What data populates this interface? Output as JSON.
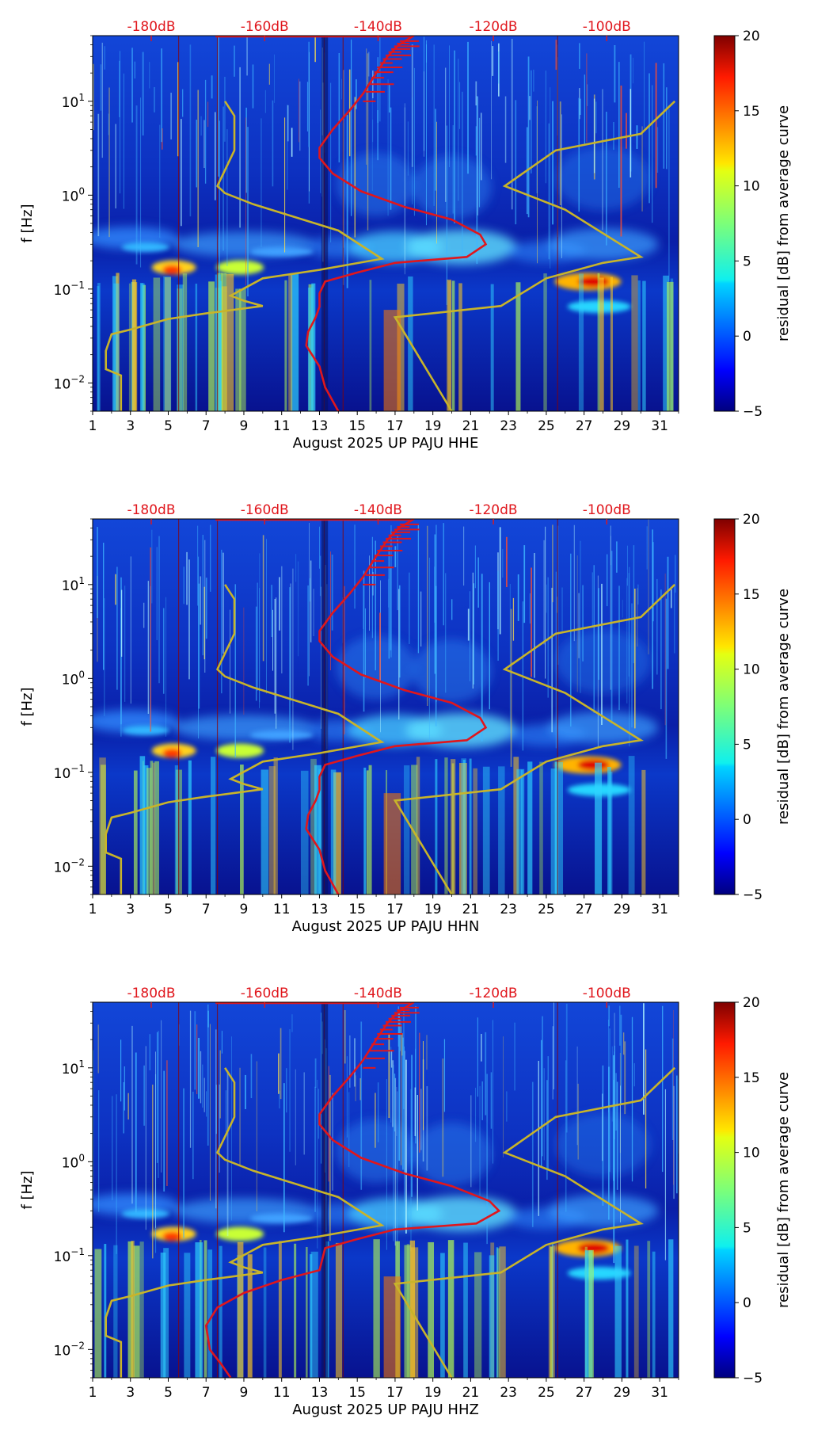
{
  "chart_data": [
    {
      "type": "heatmap",
      "xlabel": "August 2025 UP PAJU  HHE",
      "ylabel": "f [Hz]",
      "x_range": [
        1,
        32
      ],
      "x_ticks": [
        "1",
        "3",
        "5",
        "7",
        "9",
        "11",
        "13",
        "15",
        "17",
        "19",
        "21",
        "23",
        "25",
        "27",
        "29",
        "31"
      ],
      "y_range": [
        0.005,
        50
      ],
      "y_scale": "log",
      "y_ticks": [
        {
          "base": "10",
          "exp": "1",
          "value": 10
        },
        {
          "base": "10",
          "exp": "0",
          "value": 1
        },
        {
          "base": "10",
          "exp": "−1",
          "value": 0.1
        },
        {
          "base": "10",
          "exp": "−2",
          "value": 0.01
        }
      ],
      "top_scale_labels": [
        "-180dB",
        "-160dB",
        "-140dB",
        "-120dB",
        "-100dB"
      ],
      "colorbar": {
        "label": "residual [dB] from average curve",
        "min": -5,
        "max": 20,
        "ticks": [
          "20",
          "15",
          "10",
          "5",
          "0",
          "−5"
        ]
      }
    },
    {
      "type": "heatmap",
      "xlabel": "August 2025 UP PAJU  HHN",
      "ylabel": "f [Hz]",
      "x_range": [
        1,
        32
      ],
      "x_ticks": [
        "1",
        "3",
        "5",
        "7",
        "9",
        "11",
        "13",
        "15",
        "17",
        "19",
        "21",
        "23",
        "25",
        "27",
        "29",
        "31"
      ],
      "y_range": [
        0.005,
        50
      ],
      "y_scale": "log",
      "y_ticks": [
        {
          "base": "10",
          "exp": "1",
          "value": 10
        },
        {
          "base": "10",
          "exp": "0",
          "value": 1
        },
        {
          "base": "10",
          "exp": "−1",
          "value": 0.1
        },
        {
          "base": "10",
          "exp": "−2",
          "value": 0.01
        }
      ],
      "top_scale_labels": [
        "-180dB",
        "-160dB",
        "-140dB",
        "-120dB",
        "-100dB"
      ],
      "colorbar": {
        "label": "residual [dB] from average curve",
        "min": -5,
        "max": 20,
        "ticks": [
          "20",
          "15",
          "10",
          "5",
          "0",
          "−5"
        ]
      }
    },
    {
      "type": "heatmap",
      "xlabel": "August 2025 UP PAJU  HHZ",
      "ylabel": "f [Hz]",
      "x_range": [
        1,
        32
      ],
      "x_ticks": [
        "1",
        "3",
        "5",
        "7",
        "9",
        "11",
        "13",
        "15",
        "17",
        "19",
        "21",
        "23",
        "25",
        "27",
        "29",
        "31"
      ],
      "y_range": [
        0.005,
        50
      ],
      "y_scale": "log",
      "y_ticks": [
        {
          "base": "10",
          "exp": "1",
          "value": 10
        },
        {
          "base": "10",
          "exp": "0",
          "value": 1
        },
        {
          "base": "10",
          "exp": "−1",
          "value": 0.1
        },
        {
          "base": "10",
          "exp": "−2",
          "value": 0.01
        }
      ],
      "top_scale_labels": [
        "-180dB",
        "-160dB",
        "-140dB",
        "-120dB",
        "-100dB"
      ],
      "colorbar": {
        "label": "residual [dB] from average curve",
        "min": -5,
        "max": 20,
        "ticks": [
          "20",
          "15",
          "10",
          "5",
          "0",
          "−5"
        ]
      }
    }
  ],
  "colors": {
    "model_curves": "#c8b42a",
    "station_curve": "#e0161c",
    "top_labels": "#e0161c",
    "background": "#0b1a9a"
  }
}
